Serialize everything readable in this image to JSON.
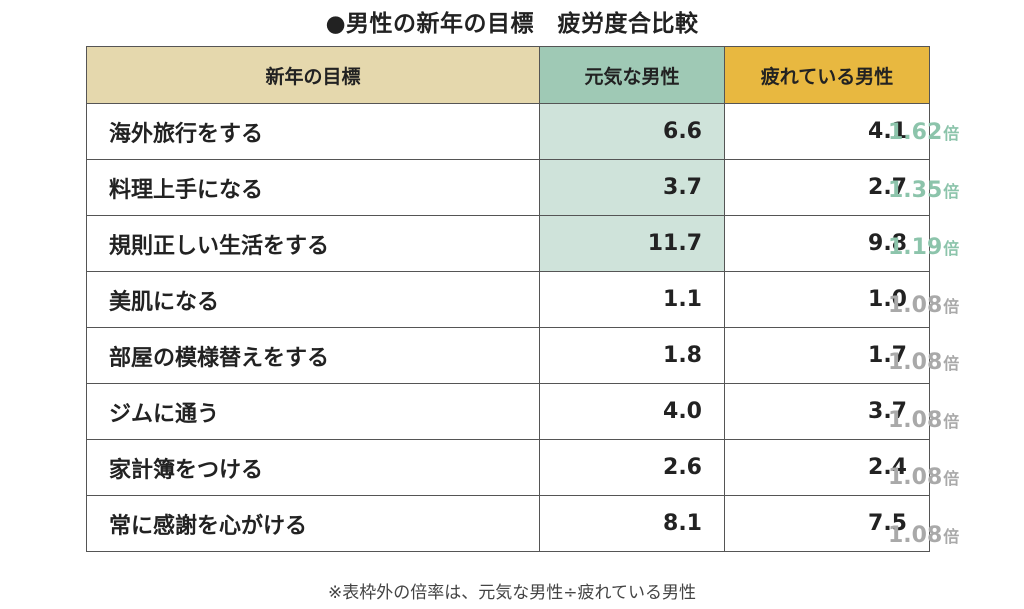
{
  "title": "●男性の新年の目標　疲労度合比較",
  "note": "※表枠外の倍率は、元気な男性÷疲れている男性",
  "colors": {
    "header_goal": "#e5d8ad",
    "header_genki": "#9fc9b5",
    "header_tired": "#e8b840",
    "highlight_cell": "#cfe3da",
    "ratio_high": "#8cc4ab",
    "ratio_low": "#a9a9a9"
  },
  "chart_data": {
    "type": "table",
    "columns": [
      "新年の目標",
      "元気な男性",
      "疲れている男性"
    ],
    "rows": [
      {
        "goal": "海外旅行をする",
        "genki": "6.6",
        "tired": "4.1",
        "ratio": "1.62",
        "ratio_unit": "倍",
        "highlight": true
      },
      {
        "goal": "料理上手になる",
        "genki": "3.7",
        "tired": "2.7",
        "ratio": "1.35",
        "ratio_unit": "倍",
        "highlight": true
      },
      {
        "goal": "規則正しい生活をする",
        "genki": "11.7",
        "tired": "9.8",
        "ratio": "1.19",
        "ratio_unit": "倍",
        "highlight": true
      },
      {
        "goal": "美肌になる",
        "genki": "1.1",
        "tired": "1.0",
        "ratio": "1.08",
        "ratio_unit": "倍",
        "highlight": false
      },
      {
        "goal": "部屋の模様替えをする",
        "genki": "1.8",
        "tired": "1.7",
        "ratio": "1.08",
        "ratio_unit": "倍",
        "highlight": false
      },
      {
        "goal": "ジムに通う",
        "genki": "4.0",
        "tired": "3.7",
        "ratio": "1.08",
        "ratio_unit": "倍",
        "highlight": false
      },
      {
        "goal": "家計簿をつける",
        "genki": "2.6",
        "tired": "2.4",
        "ratio": "1.08",
        "ratio_unit": "倍",
        "highlight": false
      },
      {
        "goal": "常に感謝を心がける",
        "genki": "8.1",
        "tired": "7.5",
        "ratio": "1.08",
        "ratio_unit": "倍",
        "highlight": false
      }
    ]
  }
}
